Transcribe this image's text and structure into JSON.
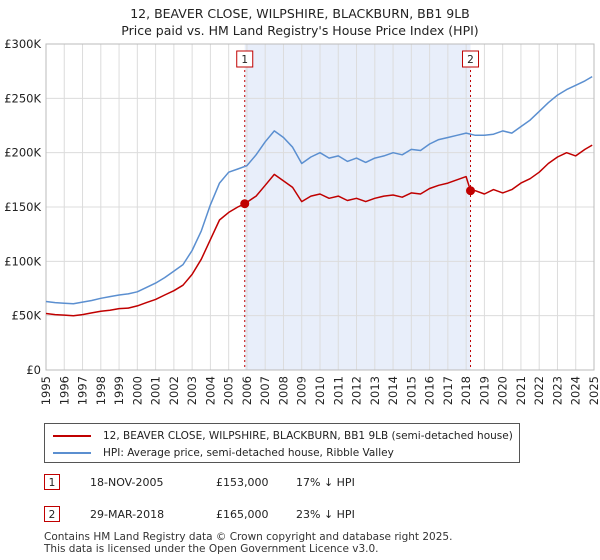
{
  "header": {
    "title_line1": "12, BEAVER CLOSE, WILPSHIRE, BLACKBURN, BB1 9LB",
    "title_line2": "Price paid vs. HM Land Registry's House Price Index (HPI)"
  },
  "colors": {
    "price_line": "#c00000",
    "hpi_line": "#5b8fd0",
    "shade": "#e8eefa",
    "marker_border": "#c00000"
  },
  "chart_data": {
    "type": "line",
    "xlim": [
      1995,
      2025
    ],
    "ylim": [
      0,
      300000
    ],
    "x_ticks": [
      "1995",
      "1996",
      "1997",
      "1998",
      "1999",
      "2000",
      "2001",
      "2002",
      "2003",
      "2004",
      "2005",
      "2006",
      "2007",
      "2008",
      "2009",
      "2010",
      "2011",
      "2012",
      "2013",
      "2014",
      "2015",
      "2016",
      "2017",
      "2018",
      "2019",
      "2020",
      "2021",
      "2022",
      "2023",
      "2024",
      "2025"
    ],
    "y_ticks": [
      {
        "value": 0,
        "label": "£0"
      },
      {
        "value": 50000,
        "label": "£50K"
      },
      {
        "value": 100000,
        "label": "£100K"
      },
      {
        "value": 150000,
        "label": "£150K"
      },
      {
        "value": 200000,
        "label": "£200K"
      },
      {
        "value": 250000,
        "label": "£250K"
      },
      {
        "value": 300000,
        "label": "£300K"
      }
    ],
    "shaded_range": [
      2005.88,
      2018.24
    ],
    "series": [
      {
        "name": "12, BEAVER CLOSE, WILPSHIRE, BLACKBURN, BB1 9LB (semi-detached house)",
        "x": [
          1995,
          1995.5,
          1996,
          1996.5,
          1997,
          1997.5,
          1998,
          1998.5,
          1999,
          1999.5,
          2000,
          2000.5,
          2001,
          2001.5,
          2002,
          2002.5,
          2003,
          2003.5,
          2004,
          2004.5,
          2005,
          2005.5,
          2005.88,
          2006.5,
          2007,
          2007.5,
          2008,
          2008.5,
          2009,
          2009.5,
          2010,
          2010.5,
          2011,
          2011.5,
          2012,
          2012.5,
          2013,
          2013.5,
          2014,
          2014.5,
          2015,
          2015.5,
          2016,
          2016.5,
          2017,
          2017.5,
          2018,
          2018.24,
          2018.5,
          2019,
          2019.5,
          2020,
          2020.5,
          2021,
          2021.5,
          2022,
          2022.5,
          2023,
          2023.5,
          2024,
          2024.5,
          2024.9
        ],
        "values": [
          52000,
          51000,
          50500,
          50000,
          51000,
          52500,
          54000,
          55000,
          56500,
          57000,
          59000,
          62000,
          65000,
          69000,
          73000,
          78000,
          88000,
          102000,
          120000,
          138000,
          145000,
          150000,
          153000,
          160000,
          170000,
          180000,
          174000,
          168000,
          155000,
          160000,
          162000,
          158000,
          160000,
          156000,
          158000,
          155000,
          158000,
          160000,
          161000,
          159000,
          163000,
          162000,
          167000,
          170000,
          172000,
          175000,
          178000,
          165000,
          165000,
          162000,
          166000,
          163000,
          166000,
          172000,
          176000,
          182000,
          190000,
          196000,
          200000,
          197000,
          203000,
          207000
        ]
      },
      {
        "name": "HPI: Average price, semi-detached house, Ribble Valley",
        "x": [
          1995,
          1995.5,
          1996,
          1996.5,
          1997,
          1997.5,
          1998,
          1998.5,
          1999,
          1999.5,
          2000,
          2000.5,
          2001,
          2001.5,
          2002,
          2002.5,
          2003,
          2003.5,
          2004,
          2004.5,
          2005,
          2005.5,
          2006,
          2006.5,
          2007,
          2007.5,
          2008,
          2008.5,
          2009,
          2009.5,
          2010,
          2010.5,
          2011,
          2011.5,
          2012,
          2012.5,
          2013,
          2013.5,
          2014,
          2014.5,
          2015,
          2015.5,
          2016,
          2016.5,
          2017,
          2017.5,
          2018,
          2018.5,
          2019,
          2019.5,
          2020,
          2020.5,
          2021,
          2021.5,
          2022,
          2022.5,
          2023,
          2023.5,
          2024,
          2024.5,
          2024.9
        ],
        "values": [
          63000,
          62000,
          61500,
          61000,
          62500,
          64000,
          66000,
          67500,
          69000,
          70000,
          72000,
          76000,
          80000,
          85000,
          91000,
          97000,
          110000,
          128000,
          152000,
          172000,
          182000,
          185000,
          188000,
          198000,
          210000,
          220000,
          214000,
          205000,
          190000,
          196000,
          200000,
          195000,
          197000,
          192000,
          195000,
          191000,
          195000,
          197000,
          200000,
          198000,
          203000,
          202000,
          208000,
          212000,
          214000,
          216000,
          218000,
          216000,
          216000,
          217000,
          220000,
          218000,
          224000,
          230000,
          238000,
          246000,
          253000,
          258000,
          262000,
          266000,
          270000
        ]
      }
    ],
    "markers": [
      {
        "label": "1",
        "x": 2005.88,
        "y": 153000
      },
      {
        "label": "2",
        "x": 2018.24,
        "y": 165000
      }
    ]
  },
  "legend": {
    "items": [
      {
        "label": "12, BEAVER CLOSE, WILPSHIRE, BLACKBURN, BB1 9LB (semi-detached house)"
      },
      {
        "label": "HPI: Average price, semi-detached house, Ribble Valley"
      }
    ]
  },
  "transactions": [
    {
      "num": "1",
      "date": "18-NOV-2005",
      "price": "£153,000",
      "hpi": "17% ↓ HPI"
    },
    {
      "num": "2",
      "date": "29-MAR-2018",
      "price": "£165,000",
      "hpi": "23% ↓ HPI"
    }
  ],
  "footer": {
    "line1": "Contains HM Land Registry data © Crown copyright and database right 2025.",
    "line2": "This data is licensed under the Open Government Licence v3.0."
  }
}
